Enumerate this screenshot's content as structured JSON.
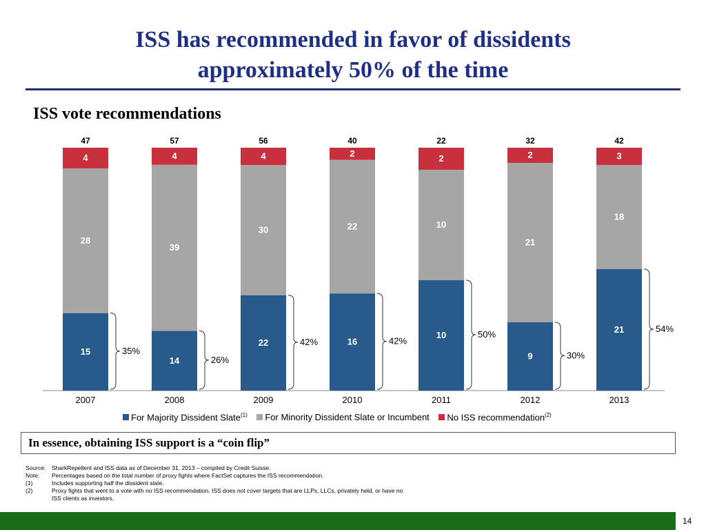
{
  "slide": {
    "title_line1": "ISS has recommended in favor of dissidents",
    "title_line2": "approximately 50% of the time",
    "subtitle": "ISS vote recommendations",
    "callout": "In essence, obtaining ISS support is a “coin flip”",
    "page_number": "14",
    "notes": [
      {
        "key": "Source:",
        "text": "SharkRepellent and ISS data as of December 31, 2013 – compiled by Credit Suisse."
      },
      {
        "key": "Note:",
        "text": "Percentages based on the total number of proxy fights where FactSet captures the ISS recommendation."
      },
      {
        "key": "(1)",
        "text": "Includes supporting half the dissident slate."
      },
      {
        "key": "(2)",
        "text": "Proxy fights that went to a vote with no ISS recommendation. ISS does not cover targets that are LLPs, LLCs, privately held, or have no"
      },
      {
        "key": "",
        "text": "ISS clients as investors."
      }
    ]
  },
  "legend": {
    "majority": "For Majority Dissident Slate",
    "majority_note": "(1)",
    "minority": "For Minority Dissident Slate or Incumbent",
    "none": "No ISS recommendation",
    "none_note": "(2)"
  },
  "colors": {
    "majority": "#285a8c",
    "minority": "#a6a6a6",
    "none": "#c8303e"
  },
  "chart_data": {
    "type": "bar",
    "stacked": true,
    "categories": [
      "2007",
      "2008",
      "2009",
      "2010",
      "2011",
      "2012",
      "2013"
    ],
    "series": [
      {
        "name": "For Majority Dissident Slate",
        "values": [
          15,
          14,
          22,
          16,
          10,
          9,
          21
        ]
      },
      {
        "name": "For Minority Dissident Slate or Incumbent",
        "values": [
          28,
          39,
          30,
          22,
          10,
          21,
          18
        ]
      },
      {
        "name": "No ISS recommendation",
        "values": [
          4,
          4,
          4,
          2,
          2,
          2,
          3
        ]
      }
    ],
    "totals": [
      "47",
      "57",
      "56",
      "40",
      "22",
      "32",
      "42"
    ],
    "percent_labels": [
      "35%",
      "26%",
      "42%",
      "42%",
      "50%",
      "30%",
      "54%"
    ],
    "legend_position": "bottom",
    "grid": false
  }
}
